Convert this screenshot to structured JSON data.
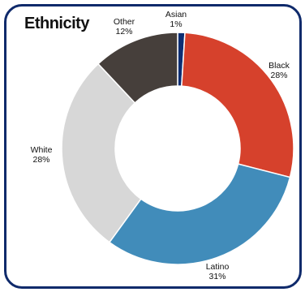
{
  "chart_data": {
    "type": "pie",
    "variant": "donut",
    "title": "Ethnicity",
    "slices": [
      {
        "label": "Asian",
        "value": 1,
        "pct_label": "1%",
        "color": "#0d2e73"
      },
      {
        "label": "Black",
        "value": 28,
        "pct_label": "28%",
        "color": "#d6412c"
      },
      {
        "label": "Latino",
        "value": 31,
        "pct_label": "31%",
        "color": "#418cba"
      },
      {
        "label": "White",
        "value": 28,
        "pct_label": "28%",
        "color": "#d7d7d7"
      },
      {
        "label": "Other",
        "value": 12,
        "pct_label": "12%",
        "color": "#463f3b"
      }
    ]
  }
}
